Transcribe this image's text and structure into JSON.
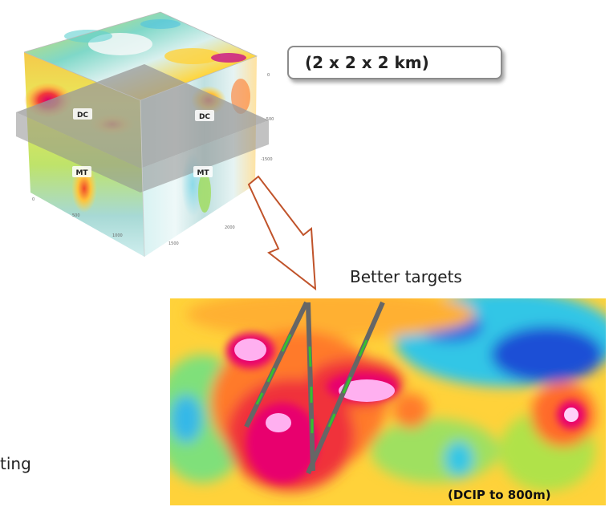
{
  "cube": {
    "labels": [
      "DC",
      "DC",
      "MT",
      "MT"
    ],
    "size_label": "(2 x 2 x 2 km)"
  },
  "targets": {
    "label": "Better targets",
    "caption": "(DCIP to 800m)"
  },
  "cut_text": "ting",
  "colors": {
    "callout_border": "#8c8c8c",
    "arrow": "#c0532a",
    "plane": "#9a9a9a",
    "drill": "#666666",
    "drill_marks": "#35c02f"
  }
}
